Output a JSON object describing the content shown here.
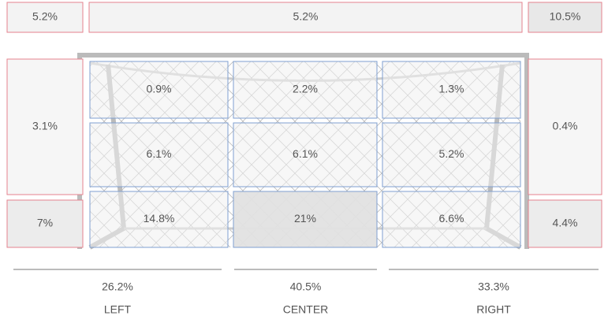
{
  "outside": {
    "top_left": "5.2%",
    "top": "5.2%",
    "top_right": "10.5%",
    "left_upper": "3.1%",
    "left_lower": "7%",
    "right_upper": "0.4%",
    "right_lower": "4.4%"
  },
  "goal": {
    "rows": [
      [
        "0.9%",
        "2.2%",
        "1.3%"
      ],
      [
        "6.1%",
        "6.1%",
        "5.2%"
      ],
      [
        "14.8%",
        "21%",
        "6.6%"
      ]
    ]
  },
  "columns": [
    {
      "total": "26.2%",
      "label": "LEFT"
    },
    {
      "total": "40.5%",
      "label": "CENTER"
    },
    {
      "total": "33.3%",
      "label": "RIGHT"
    }
  ]
}
